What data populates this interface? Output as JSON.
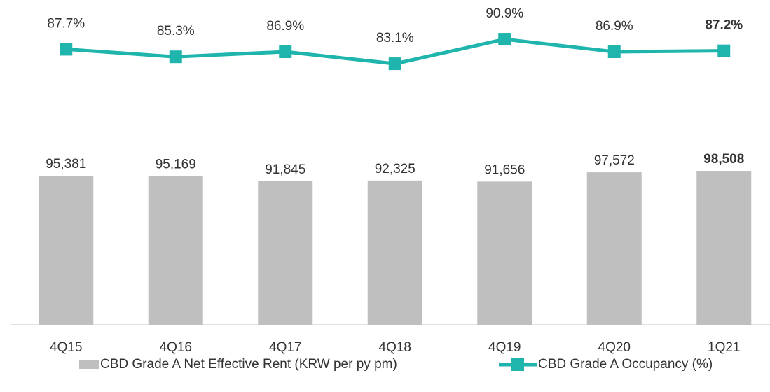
{
  "chart_data": {
    "type": "bar",
    "categories": [
      "4Q15",
      "4Q16",
      "4Q17",
      "4Q18",
      "4Q19",
      "4Q20",
      "1Q21"
    ],
    "series": [
      {
        "name": "CBD Grade A Net Effective Rent (KRW per py pm)",
        "type": "bar",
        "color": "#bfbfbf",
        "values": [
          95381,
          95169,
          91845,
          92325,
          91656,
          97572,
          98508
        ],
        "value_labels": [
          "95,381",
          "95,169",
          "91,845",
          "92,325",
          "91,656",
          "97,572",
          "98,508"
        ]
      },
      {
        "name": "CBD Grade A Occupancy (%)",
        "type": "line",
        "axis": "y2",
        "color": "#1fb5ad",
        "values": [
          87.7,
          85.3,
          86.9,
          83.1,
          90.9,
          86.9,
          87.2
        ],
        "value_labels": [
          "87.7%",
          "85.3%",
          "86.9%",
          "83.1%",
          "90.9%",
          "86.9%",
          "87.2%"
        ]
      }
    ],
    "ylim": [
      0,
      206000
    ],
    "y2lim": [
      0,
      102.5
    ],
    "grid": false,
    "legend": "bottom"
  }
}
